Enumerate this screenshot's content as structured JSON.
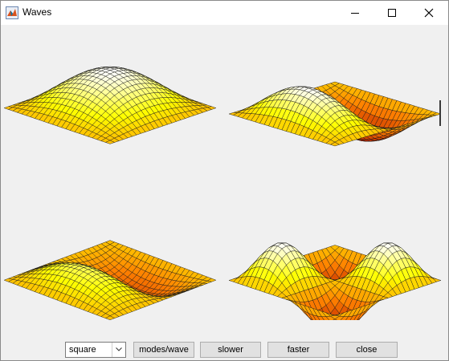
{
  "window": {
    "title": "Waves"
  },
  "icons": {
    "app": "matlab-icon",
    "minimize": "minimize-icon",
    "maximize": "maximize-icon",
    "close": "close-icon",
    "dropdown": "chevron-down-icon"
  },
  "controls": {
    "wave_select": {
      "value": "square"
    },
    "modes_label": "modes/wave",
    "slower_label": "slower",
    "faster_label": "faster",
    "close_label": "close"
  },
  "plots": [
    {
      "mode": [
        1,
        1
      ],
      "phase": 0.0
    },
    {
      "mode": [
        2,
        1
      ],
      "phase": 0.0
    },
    {
      "mode": [
        2,
        1
      ],
      "phase": 1.0
    },
    {
      "mode": [
        2,
        2
      ],
      "phase": 0.0
    }
  ],
  "colors": {
    "low": "#b01000",
    "mid": "#ff8000",
    "high": "#ffff00",
    "peak": "#ffffff"
  }
}
